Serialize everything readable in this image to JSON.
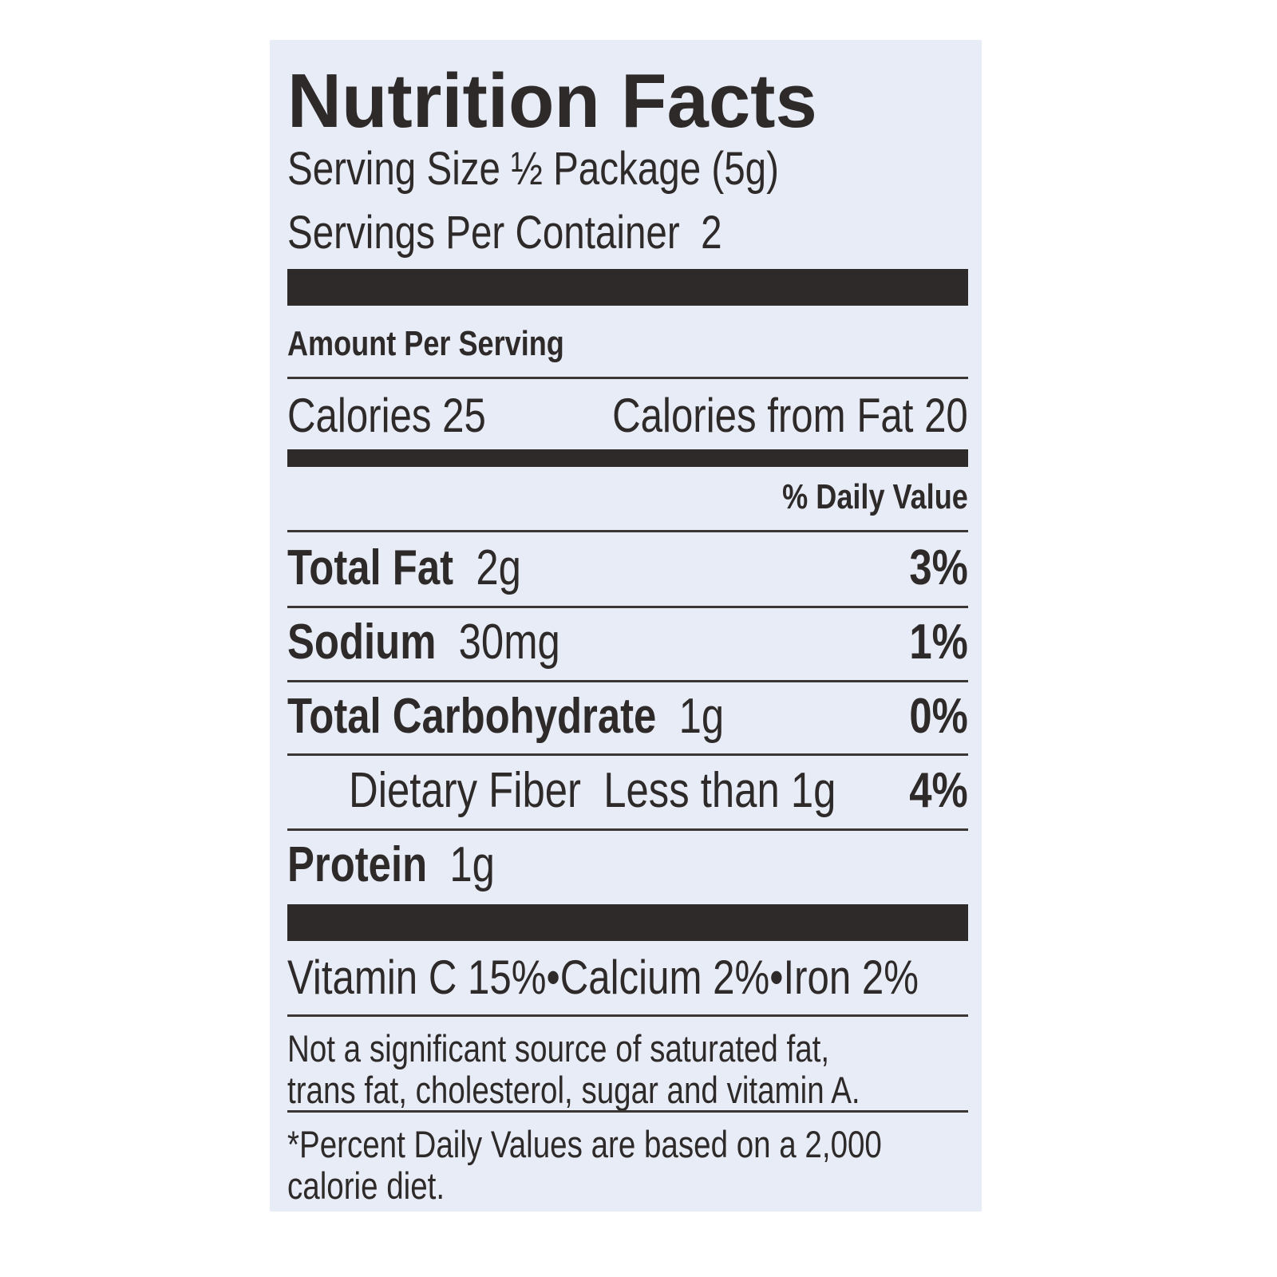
{
  "title": "Nutrition Facts",
  "serving_size": "Serving Size ½ Package (5g)",
  "servings_per_container": "Servings Per Container  2",
  "amount_per_serving": "Amount Per Serving",
  "calories": "Calories 25",
  "calories_from_fat": "Calories from Fat 20",
  "daily_value_header": "% Daily Value",
  "nutrients": [
    {
      "name": "Total Fat",
      "amount": "2g",
      "daily_value": "3%"
    },
    {
      "name": "Sodium",
      "amount": "30mg",
      "daily_value": "1%"
    },
    {
      "name": "Total Carbohydrate",
      "amount": "1g",
      "daily_value": "0%"
    },
    {
      "name": "Dietary Fiber",
      "amount": "Less than 1g",
      "daily_value": "4%"
    },
    {
      "name": "Protein",
      "amount": "1g"
    }
  ],
  "vitamins": "Vitamin C 15%•Calcium 2%•Iron 2%",
  "note": [
    "Not a significant source of saturated fat,",
    "trans fat, cholesterol, sugar and vitamin A."
  ],
  "footnote": [
    "*Percent Daily Values are based on a 2,000",
    "calorie diet."
  ]
}
